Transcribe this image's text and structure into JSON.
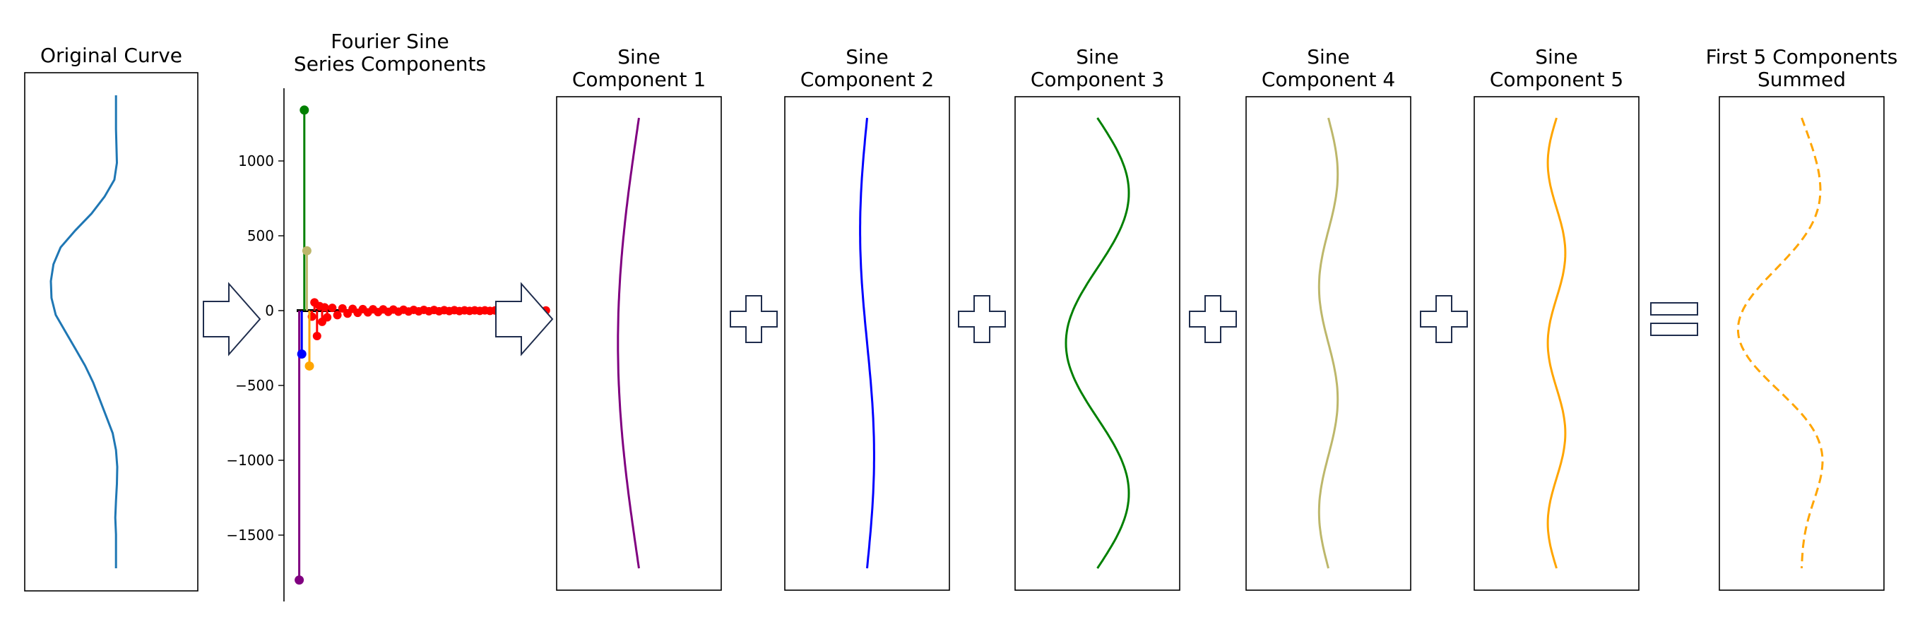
{
  "chart_data": [
    {
      "type": "line",
      "title": "Original Curve",
      "axes_visible": false,
      "color": "#1f77b4",
      "description_x_from_y": [
        [
          1400,
          1.0
        ],
        [
          1200,
          1.0
        ],
        [
          1000,
          1.03
        ],
        [
          900,
          0.95
        ],
        [
          800,
          0.65
        ],
        [
          700,
          0.25
        ],
        [
          600,
          -0.25
        ],
        [
          500,
          -0.7
        ],
        [
          400,
          -0.92
        ],
        [
          300,
          -1.0
        ],
        [
          200,
          -0.98
        ],
        [
          100,
          -0.85
        ],
        [
          0,
          -0.55
        ],
        [
          -100,
          -0.25
        ],
        [
          -200,
          0.05
        ],
        [
          -300,
          0.3
        ],
        [
          -400,
          0.5
        ],
        [
          -500,
          0.7
        ],
        [
          -600,
          0.9
        ],
        [
          -700,
          1.0
        ],
        [
          -800,
          1.04
        ],
        [
          -900,
          1.03
        ],
        [
          -1000,
          1.0
        ],
        [
          -1100,
          0.98
        ],
        [
          -1200,
          1.0
        ],
        [
          -1300,
          1.0
        ],
        [
          -1400,
          1.0
        ]
      ]
    },
    {
      "type": "scatter",
      "title": "Fourier Sine\nSeries Components",
      "ylim": [
        -1950,
        1500
      ],
      "yticks": [
        "1000",
        "500",
        "0",
        "−500",
        "−1000",
        "−1500"
      ],
      "ytick_values": [
        1000,
        500,
        0,
        -500,
        -1000,
        -1500
      ],
      "stems": [
        {
          "x": 1,
          "value": -1800,
          "color": "#800080"
        },
        {
          "x": 2,
          "value": -290,
          "color": "#0000ff"
        },
        {
          "x": 3,
          "value": 1340,
          "color": "#008000"
        },
        {
          "x": 4,
          "value": 400,
          "color": "#bdb76b"
        },
        {
          "x": 5,
          "value": -370,
          "color": "#ffa500"
        }
      ],
      "residual_points": [
        -40,
        55,
        -170,
        30,
        -75,
        22,
        -45,
        18,
        -30,
        15,
        -20,
        12,
        -15,
        10,
        -12,
        9,
        -10,
        8,
        -8,
        7,
        -7,
        6,
        -6,
        5,
        -5,
        5,
        -4,
        4,
        -4,
        3,
        -3,
        3,
        -3,
        2,
        -2,
        2,
        -2,
        2,
        -2,
        1,
        -1,
        1,
        -1,
        1,
        -1,
        1,
        -1,
        1,
        -1,
        1
      ],
      "residual_color": "#ff0000",
      "xlim": [
        0,
        75
      ]
    },
    {
      "type": "line",
      "title": "Sine\nComponent 1",
      "k": 1,
      "amp": -0.18,
      "color": "#800080"
    },
    {
      "type": "line",
      "title": "Sine\nComponent 2",
      "k": 2,
      "amp": -0.06,
      "color": "#0000ff"
    },
    {
      "type": "line",
      "title": "Sine\nComponent 3",
      "k": 3,
      "amp": 0.27,
      "color": "#008000"
    },
    {
      "type": "line",
      "title": "Sine\nComponent 4",
      "k": 4,
      "amp": 0.08,
      "color": "#bdb76b"
    },
    {
      "type": "line",
      "title": "Sine\nComponent 5",
      "k": 5,
      "amp": -0.075,
      "color": "#ffa500"
    },
    {
      "type": "line",
      "title": "First 5 Components\nSummed",
      "sum_of_first": 5,
      "color": "#ffa500",
      "dashed": true
    }
  ],
  "operators": [
    "arrow",
    "arrow",
    "plus",
    "plus",
    "plus",
    "plus",
    "equals"
  ]
}
